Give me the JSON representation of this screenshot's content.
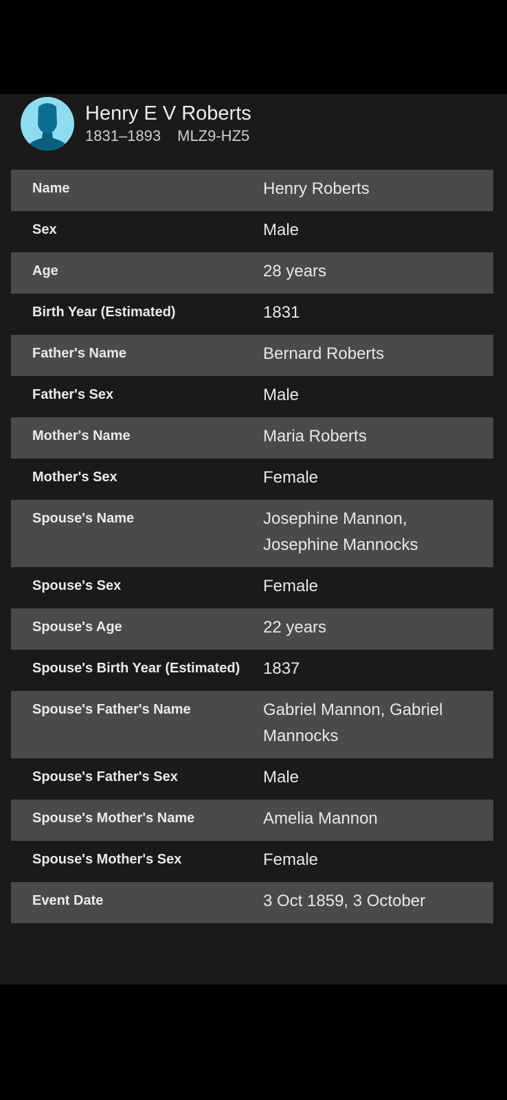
{
  "person": {
    "name": "Henry E V Roberts",
    "lifespan": "1831–1893",
    "id": "MLZ9-HZ5"
  },
  "fields": [
    {
      "label": "Name",
      "value": "Henry Roberts"
    },
    {
      "label": "Sex",
      "value": "Male"
    },
    {
      "label": "Age",
      "value": "28 years"
    },
    {
      "label": "Birth Year (Estimated)",
      "value": "1831"
    },
    {
      "label": "Father's Name",
      "value": "Bernard Roberts"
    },
    {
      "label": "Father's Sex",
      "value": "Male"
    },
    {
      "label": "Mother's Name",
      "value": "Maria Roberts"
    },
    {
      "label": "Mother's Sex",
      "value": "Female"
    },
    {
      "label": "Spouse's Name",
      "value": "Josephine Mannon, Josephine Mannocks"
    },
    {
      "label": "Spouse's Sex",
      "value": "Female"
    },
    {
      "label": "Spouse's Age",
      "value": "22 years"
    },
    {
      "label": "Spouse's Birth Year (Estimated)",
      "value": "1837"
    },
    {
      "label": "Spouse's Father's Name",
      "value": "Gabriel Mannon, Gabriel Mannocks"
    },
    {
      "label": "Spouse's Father's Sex",
      "value": "Male"
    },
    {
      "label": "Spouse's Mother's Name",
      "value": "Amelia Mannon"
    },
    {
      "label": "Spouse's Mother's Sex",
      "value": "Female"
    },
    {
      "label": "Event Date",
      "value": "3 Oct 1859, 3 October"
    }
  ],
  "colors": {
    "background": "#1a1a1a",
    "row_alt": "#4a4a4a",
    "avatar": "#8fdcf0",
    "silhouette": "#0b6e93"
  },
  "icons": {
    "avatar": "person-silhouette-icon"
  }
}
